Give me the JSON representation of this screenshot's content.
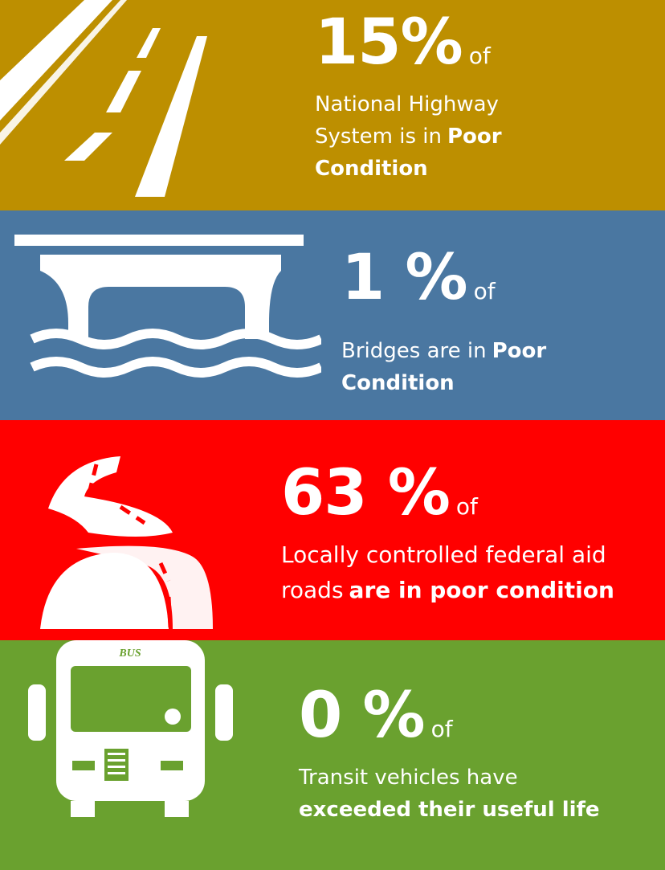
{
  "panels": [
    {
      "stat": "15%",
      "of": "of",
      "text": "National Highway System is in",
      "bold": "Poor Condition"
    },
    {
      "stat": "1 %",
      "of": "of",
      "text": "Bridges are in",
      "bold": "Poor Condition"
    },
    {
      "stat": "63 %",
      "of": "of",
      "text": "Locally controlled federal aid roads",
      "bold": "are in poor condition"
    },
    {
      "stat": "0 %",
      "of": "of",
      "text": "Transit vehicles have",
      "bold": "exceeded their useful life",
      "icon_label": "BUS"
    }
  ]
}
